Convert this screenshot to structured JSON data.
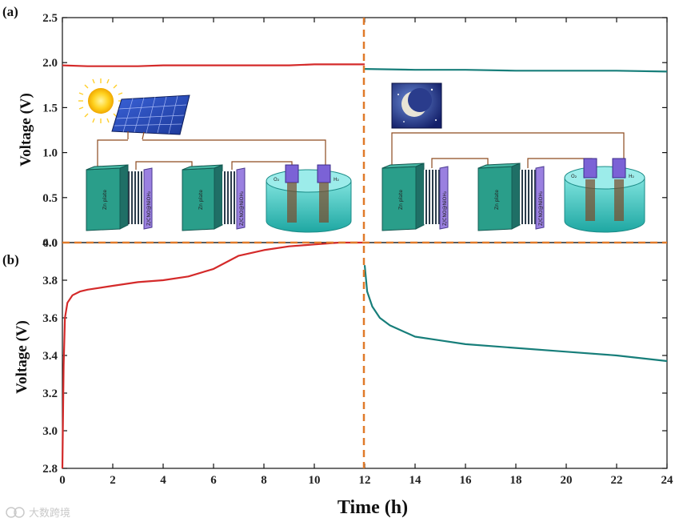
{
  "figure": {
    "panel_a_label": "(a)",
    "panel_b_label": "(b)",
    "xlabel": "Time (h)",
    "ylabel_a": "Voltage (V)",
    "ylabel_b": "Voltage (V)",
    "watermark": "大数跨境"
  },
  "inset": {
    "zn_plate": "Zn plate",
    "electrode": "Z/CNO@NiOH₂",
    "o2": "O₂",
    "h2": "H₂"
  },
  "colors": {
    "day_series": "#d42a2a",
    "night_series": "#177e7a",
    "divider": "#e07a2a",
    "cell_front": "#2a9e8a",
    "cell_side": "#1f6f66",
    "electrode": "#9a80e0",
    "water": "#3ec9c4"
  },
  "chart_data": [
    {
      "type": "line",
      "panel": "(a)",
      "xlim": [
        0,
        24
      ],
      "ylim": [
        0.0,
        2.5
      ],
      "yticks": [
        0.0,
        0.5,
        1.0,
        1.5,
        2.0,
        2.5
      ],
      "ylabel": "Voltage (V)",
      "grid": false,
      "series": [
        {
          "color": "#d42a2a",
          "x": [
            0,
            1,
            2,
            3,
            4,
            5,
            6,
            7,
            8,
            9,
            10,
            11,
            12
          ],
          "y": [
            1.97,
            1.96,
            1.96,
            1.96,
            1.97,
            1.97,
            1.97,
            1.97,
            1.97,
            1.97,
            1.98,
            1.98,
            1.98
          ]
        },
        {
          "color": "#177e7a",
          "x": [
            12,
            14,
            16,
            18,
            20,
            22,
            24
          ],
          "y": [
            1.93,
            1.92,
            1.92,
            1.91,
            1.91,
            1.91,
            1.9
          ]
        }
      ],
      "annotations": [
        "vertical dashed line at x = 12",
        "horizontal dashed line at y = 0.0"
      ]
    },
    {
      "type": "line",
      "panel": "(b)",
      "xlim": [
        0,
        24
      ],
      "ylim": [
        2.8,
        4.0
      ],
      "yticks": [
        2.8,
        3.0,
        3.2,
        3.4,
        3.6,
        3.8,
        4.0
      ],
      "xticks": [
        0,
        2,
        4,
        6,
        8,
        10,
        12,
        14,
        16,
        18,
        20,
        22,
        24
      ],
      "xlabel": "Time (h)",
      "ylabel": "Voltage (V)",
      "grid": false,
      "series": [
        {
          "color": "#d42a2a",
          "x": [
            0,
            0.05,
            0.1,
            0.2,
            0.4,
            0.7,
            1,
            2,
            3,
            4,
            5,
            6,
            7,
            8,
            9,
            10,
            11,
            12
          ],
          "y": [
            2.8,
            3.35,
            3.6,
            3.68,
            3.72,
            3.74,
            3.75,
            3.77,
            3.79,
            3.8,
            3.82,
            3.86,
            3.93,
            3.96,
            3.98,
            3.99,
            4.0,
            4.0
          ]
        },
        {
          "color": "#177e7a",
          "x": [
            12,
            12.1,
            12.3,
            12.6,
            13,
            13.5,
            14,
            15,
            16,
            18,
            20,
            22,
            24
          ],
          "y": [
            3.88,
            3.74,
            3.66,
            3.6,
            3.56,
            3.53,
            3.5,
            3.48,
            3.46,
            3.44,
            3.42,
            3.4,
            3.37
          ]
        }
      ]
    }
  ]
}
